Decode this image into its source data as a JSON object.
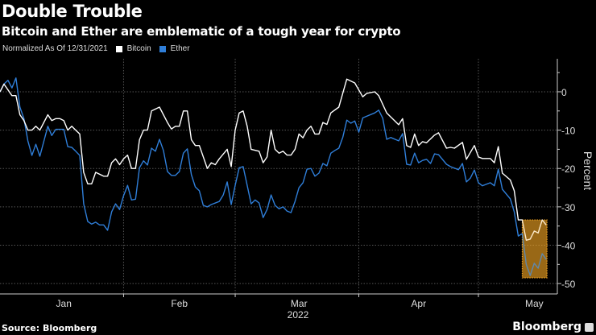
{
  "header": {
    "title": "Double Trouble",
    "subtitle": "Bitcoin and Ether are emblematic of a tough year for crypto"
  },
  "legend": {
    "note": "Normalized As Of 12/31/2021",
    "items": [
      {
        "label": "Bitcoin",
        "color": "#ffffff"
      },
      {
        "label": "Ether",
        "color": "#2f7ed8"
      }
    ]
  },
  "footer": {
    "source": "Source: Bloomberg",
    "brand": "Bloomberg"
  },
  "chart_data": {
    "type": "line",
    "title": "Double Trouble",
    "xlabel": "2022",
    "ylabel": "Percent",
    "x_unit": "days since 12/31/2021",
    "xlim": [
      0,
      139.8
    ],
    "ylim": [
      -52.7,
      8.6
    ],
    "x_ticks": [
      {
        "label": "Jan",
        "at": 16
      },
      {
        "label": "Feb",
        "at": 45
      },
      {
        "label": "Mar",
        "at": 75
      },
      {
        "label": "Apr",
        "at": 105
      },
      {
        "label": "May",
        "at": 134
      }
    ],
    "x_gridlines": [
      31,
      59,
      90,
      120
    ],
    "y_ticks": [
      0,
      -10,
      -20,
      -30,
      -40,
      -50
    ],
    "grid": true,
    "legend_position": "top-left",
    "highlight": {
      "x": [
        131,
        137
      ],
      "y": [
        -48.5,
        -33.4
      ],
      "color": "#f5a623"
    },
    "series": [
      {
        "name": "Bitcoin",
        "color": "#ffffff",
        "points": [
          [
            0,
            0
          ],
          [
            1,
            2
          ],
          [
            3,
            -1
          ],
          [
            4,
            -1
          ],
          [
            5,
            -6
          ],
          [
            6,
            -7.5
          ],
          [
            7,
            -10
          ],
          [
            8,
            -10
          ],
          [
            9,
            -9
          ],
          [
            10,
            -10
          ],
          [
            12,
            -6
          ],
          [
            13,
            -7.5
          ],
          [
            14,
            -7
          ],
          [
            15,
            -7
          ],
          [
            16,
            -7.5
          ],
          [
            17,
            -10
          ],
          [
            18,
            -9
          ],
          [
            19,
            -10
          ],
          [
            20,
            -11
          ],
          [
            21,
            -21
          ],
          [
            22,
            -24
          ],
          [
            23,
            -24
          ],
          [
            24,
            -21
          ],
          [
            26,
            -22
          ],
          [
            27,
            -22
          ],
          [
            28,
            -18.5
          ],
          [
            29,
            -17.5
          ],
          [
            30,
            -19
          ],
          [
            31,
            -17.5
          ],
          [
            32,
            -16.5
          ],
          [
            33,
            -20
          ],
          [
            34,
            -20
          ],
          [
            35,
            -12.5
          ],
          [
            36,
            -10
          ],
          [
            37,
            -10
          ],
          [
            38,
            -5
          ],
          [
            40,
            -4
          ],
          [
            42,
            -8
          ],
          [
            43,
            -9.7
          ],
          [
            44,
            -9
          ],
          [
            45,
            -9
          ],
          [
            46,
            -5
          ],
          [
            47,
            -5
          ],
          [
            48,
            -12.5
          ],
          [
            49,
            -14
          ],
          [
            50,
            -14
          ],
          [
            52,
            -20
          ],
          [
            53,
            -18.5
          ],
          [
            54,
            -19
          ],
          [
            55,
            -17.5
          ],
          [
            57,
            -15
          ],
          [
            58,
            -19.5
          ],
          [
            59,
            -10
          ],
          [
            60,
            -5.5
          ],
          [
            61,
            -5
          ],
          [
            62,
            -9
          ],
          [
            63,
            -15
          ],
          [
            65,
            -15.5
          ],
          [
            66,
            -18.5
          ],
          [
            67,
            -17
          ],
          [
            68,
            -10
          ],
          [
            69,
            -15
          ],
          [
            70,
            -16
          ],
          [
            71,
            -15.5
          ],
          [
            72,
            -16.5
          ],
          [
            73,
            -16.5
          ],
          [
            74,
            -15
          ],
          [
            75,
            -11
          ],
          [
            76,
            -12
          ],
          [
            77,
            -10
          ],
          [
            78,
            -9
          ],
          [
            79,
            -11
          ],
          [
            80,
            -11
          ],
          [
            81,
            -8
          ],
          [
            82,
            -8.5
          ],
          [
            83,
            -5.5
          ],
          [
            85,
            -4
          ],
          [
            87,
            3.3
          ],
          [
            89,
            2.3
          ],
          [
            91,
            -1.3
          ],
          [
            92,
            -0.4
          ],
          [
            94,
            0
          ],
          [
            95,
            -1
          ],
          [
            97,
            -5.5
          ],
          [
            100,
            -8.6
          ],
          [
            101,
            -7
          ],
          [
            102,
            -14
          ],
          [
            103,
            -14.5
          ],
          [
            104,
            -11
          ],
          [
            105,
            -14
          ],
          [
            106,
            -13
          ],
          [
            107,
            -13.3
          ],
          [
            109,
            -11.3
          ],
          [
            110,
            -10.7
          ],
          [
            112,
            -14.7
          ],
          [
            113,
            -14.5
          ],
          [
            114,
            -14.7
          ],
          [
            116,
            -13.2
          ],
          [
            117,
            -17.6
          ],
          [
            119,
            -14
          ],
          [
            120,
            -17
          ],
          [
            121,
            -17.4
          ],
          [
            123,
            -17.4
          ],
          [
            124,
            -18.5
          ],
          [
            125,
            -14.3
          ],
          [
            126,
            -21.2
          ],
          [
            128,
            -23
          ],
          [
            129,
            -25.8
          ],
          [
            130,
            -33.4
          ],
          [
            131,
            -33.4
          ],
          [
            132,
            -38.7
          ],
          [
            133,
            -38.4
          ],
          [
            134,
            -36.3
          ],
          [
            135,
            -36.8
          ],
          [
            136,
            -33.4
          ],
          [
            137,
            -34.7
          ]
        ]
      },
      {
        "name": "Ether",
        "color": "#2f7ed8",
        "points": [
          [
            0,
            0
          ],
          [
            1,
            2
          ],
          [
            2,
            3
          ],
          [
            3,
            1
          ],
          [
            4,
            3.6
          ],
          [
            5,
            -4
          ],
          [
            6,
            -7
          ],
          [
            7,
            -12.8
          ],
          [
            8,
            -16.6
          ],
          [
            9,
            -13.7
          ],
          [
            10,
            -16.8
          ],
          [
            12,
            -9
          ],
          [
            13,
            -11.4
          ],
          [
            14,
            -9.8
          ],
          [
            16,
            -9.8
          ],
          [
            17,
            -14.3
          ],
          [
            18,
            -14.5
          ],
          [
            19,
            -15.5
          ],
          [
            20,
            -16.6
          ],
          [
            21,
            -29.2
          ],
          [
            22,
            -33.8
          ],
          [
            23,
            -34.5
          ],
          [
            24,
            -34
          ],
          [
            25,
            -34.7
          ],
          [
            26,
            -34.7
          ],
          [
            27,
            -36.1
          ],
          [
            28,
            -31.3
          ],
          [
            29,
            -29.2
          ],
          [
            30,
            -30.7
          ],
          [
            31,
            -27.1
          ],
          [
            32,
            -24.4
          ],
          [
            33,
            -28.2
          ],
          [
            34,
            -28
          ],
          [
            35,
            -19.8
          ],
          [
            36,
            -18
          ],
          [
            37,
            -19.1
          ],
          [
            38,
            -14.7
          ],
          [
            39,
            -15.5
          ],
          [
            40,
            -12.4
          ],
          [
            41,
            -15.3
          ],
          [
            42,
            -20.8
          ],
          [
            43,
            -21.8
          ],
          [
            44,
            -21.8
          ],
          [
            45,
            -20.8
          ],
          [
            46,
            -16
          ],
          [
            47,
            -14.9
          ],
          [
            48,
            -21.6
          ],
          [
            49,
            -24.8
          ],
          [
            50,
            -25.8
          ],
          [
            51,
            -29.6
          ],
          [
            52,
            -30
          ],
          [
            53,
            -29.4
          ],
          [
            55,
            -28.6
          ],
          [
            56,
            -26.9
          ],
          [
            57,
            -23.5
          ],
          [
            58,
            -29.4
          ],
          [
            59,
            -24.4
          ],
          [
            60,
            -19.8
          ],
          [
            61,
            -19.5
          ],
          [
            62,
            -24.4
          ],
          [
            63,
            -29.2
          ],
          [
            64,
            -28.2
          ],
          [
            65,
            -29
          ],
          [
            66,
            -32.8
          ],
          [
            67,
            -30.7
          ],
          [
            68,
            -26.9
          ],
          [
            69,
            -29.6
          ],
          [
            70,
            -30.5
          ],
          [
            71,
            -30
          ],
          [
            72,
            -31.1
          ],
          [
            73,
            -31.5
          ],
          [
            74,
            -28.6
          ],
          [
            75,
            -25
          ],
          [
            76,
            -23.7
          ],
          [
            77,
            -20.2
          ],
          [
            78,
            -20
          ],
          [
            79,
            -22
          ],
          [
            80,
            -21.2
          ],
          [
            81,
            -18.7
          ],
          [
            82,
            -19.3
          ],
          [
            83,
            -16
          ],
          [
            84,
            -15.3
          ],
          [
            85,
            -14.7
          ],
          [
            86,
            -11.8
          ],
          [
            87,
            -7.4
          ],
          [
            88,
            -8.2
          ],
          [
            89,
            -7.6
          ],
          [
            90,
            -10.5
          ],
          [
            91,
            -6.8
          ],
          [
            94,
            -5.5
          ],
          [
            95,
            -4.8
          ],
          [
            96,
            -6.9
          ],
          [
            97,
            -12.4
          ],
          [
            98,
            -11.9
          ],
          [
            100,
            -12.8
          ],
          [
            101,
            -10.9
          ],
          [
            102,
            -18.9
          ],
          [
            103,
            -19.1
          ],
          [
            104,
            -16
          ],
          [
            105,
            -18.5
          ],
          [
            106,
            -17.9
          ],
          [
            107,
            -17.6
          ],
          [
            108,
            -18.7
          ],
          [
            109,
            -16.2
          ],
          [
            110,
            -16.4
          ],
          [
            112,
            -18.9
          ],
          [
            113,
            -19.5
          ],
          [
            115,
            -20.3
          ],
          [
            116,
            -18.7
          ],
          [
            117,
            -23.5
          ],
          [
            118,
            -22.5
          ],
          [
            119,
            -20.4
          ],
          [
            120,
            -23.7
          ],
          [
            121,
            -24.5
          ],
          [
            123,
            -23.7
          ],
          [
            124,
            -24.5
          ],
          [
            125,
            -20.2
          ],
          [
            126,
            -25.4
          ],
          [
            128,
            -27.9
          ],
          [
            129,
            -31.3
          ],
          [
            130,
            -37.6
          ],
          [
            131,
            -37
          ],
          [
            132,
            -45
          ],
          [
            133,
            -47.9
          ],
          [
            134,
            -44.7
          ],
          [
            135,
            -46
          ],
          [
            136,
            -42.2
          ],
          [
            137,
            -43.7
          ]
        ]
      }
    ]
  }
}
